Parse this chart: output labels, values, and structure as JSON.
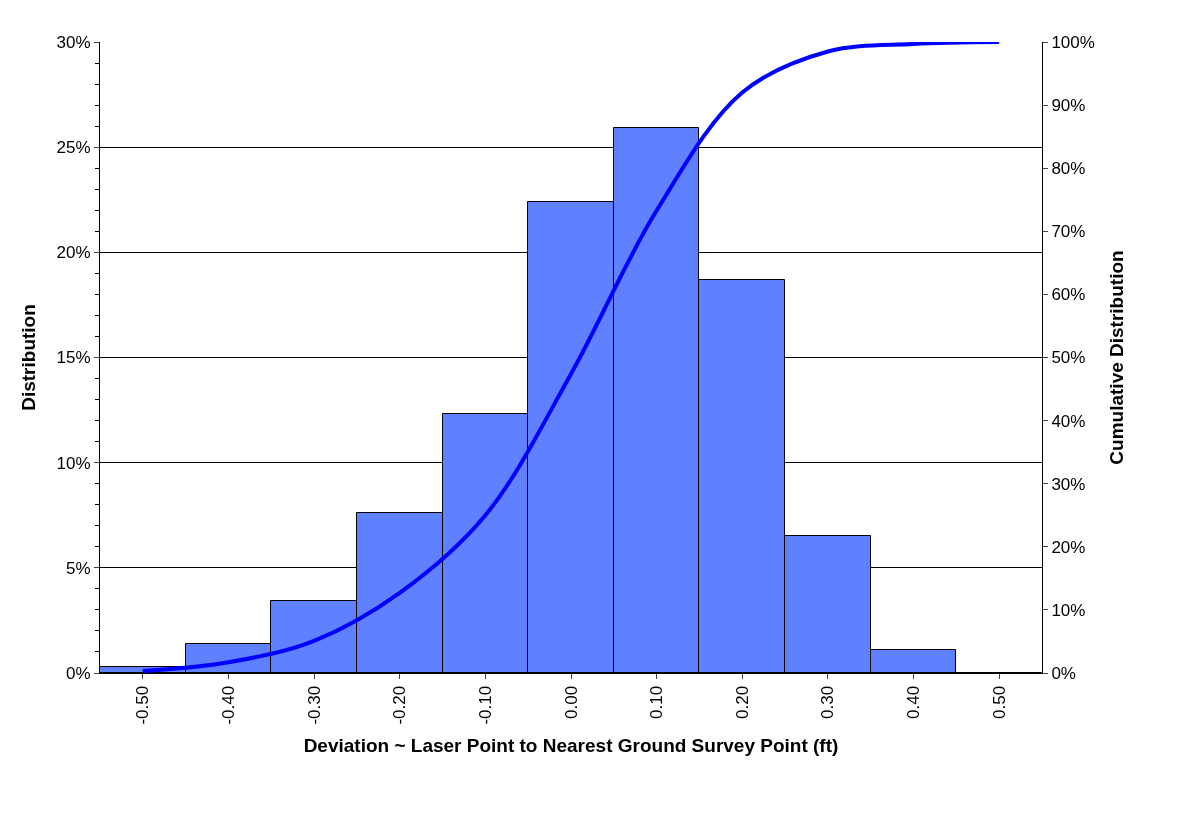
{
  "chart_data": {
    "type": "bar",
    "xlabel": "Deviation ~ Laser Point to Nearest Ground Survey Point (ft)",
    "ylabel": "Distribution",
    "y2label": "Cumulative Distribution",
    "categories": [
      "-0.50",
      "-0.40",
      "-0.30",
      "-0.20",
      "-0.10",
      "0.00",
      "0.10",
      "0.20",
      "0.30",
      "0.40",
      "0.50"
    ],
    "series": [
      {
        "color": "#5f80ff",
        "values": [
          0.3,
          1.4,
          3.4,
          7.6,
          12.3,
          22.4,
          25.9,
          18.7,
          6.5,
          1.1,
          0
        ]
      },
      {
        "type": "line",
        "axis": "y2",
        "color": "#0000ff",
        "values": [
          0.3,
          1.7,
          5.1,
          12.7,
          25,
          47.4,
          73.3,
          92,
          98.5,
          99.7,
          100
        ]
      }
    ],
    "ylim": [
      0,
      30
    ],
    "yticks": [
      {
        "value": 0,
        "label": "0%"
      },
      {
        "value": 5,
        "label": "5%"
      },
      {
        "value": 10,
        "label": "10%"
      },
      {
        "value": 15,
        "label": "15%"
      },
      {
        "value": 20,
        "label": "20%"
      },
      {
        "value": 25,
        "label": "25%"
      },
      {
        "value": 30,
        "label": "30%"
      }
    ],
    "y2lim": [
      0,
      100
    ],
    "y2ticks": [
      {
        "value": 0,
        "label": "0%"
      },
      {
        "value": 10,
        "label": "10%"
      },
      {
        "value": 20,
        "label": "20%"
      },
      {
        "value": 30,
        "label": "30%"
      },
      {
        "value": 40,
        "label": "40%"
      },
      {
        "value": 50,
        "label": "50%"
      },
      {
        "value": 60,
        "label": "60%"
      },
      {
        "value": 70,
        "label": "70%"
      },
      {
        "value": 80,
        "label": "80%"
      },
      {
        "value": 90,
        "label": "90%"
      },
      {
        "value": 100,
        "label": "100%"
      }
    ],
    "grid": "y",
    "line_style": "solid",
    "marker": "none"
  }
}
